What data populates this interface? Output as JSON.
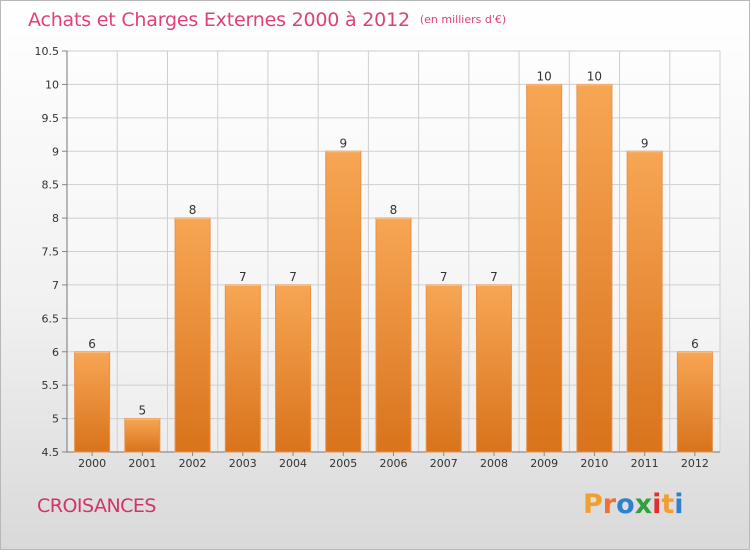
{
  "header": {
    "title": "Achats et Charges Externes 2000 à 2012",
    "subtitle": "(en milliers d'€)"
  },
  "footer": {
    "commune": "CROISANCES",
    "brand_letters": [
      "P",
      "r",
      "o",
      "x",
      "i",
      "t",
      "i"
    ]
  },
  "colors": {
    "title": "#e0407a",
    "bar_top": "#f7a654",
    "bar_bottom": "#d9731c",
    "grid": "#cfcfcf",
    "brand": [
      "#f0a030",
      "#f07030",
      "#3080d0",
      "#30a040",
      "#e03030",
      "#f0a030",
      "#3080d0"
    ]
  },
  "chart_data": {
    "type": "bar",
    "title": "Achats et Charges Externes 2000 à 2012",
    "subtitle": "(en milliers d'€)",
    "categories": [
      "2000",
      "2001",
      "2002",
      "2003",
      "2004",
      "2005",
      "2006",
      "2007",
      "2008",
      "2009",
      "2010",
      "2011",
      "2012"
    ],
    "values": [
      6,
      5,
      8,
      7,
      7,
      9,
      8,
      7,
      7,
      10,
      10,
      9,
      6
    ],
    "data_labels": [
      "6",
      "5",
      "8",
      "7",
      "7",
      "9",
      "8",
      "7",
      "7",
      "10",
      "10",
      "9",
      "6"
    ],
    "ylim": [
      4.5,
      10.5
    ],
    "yticks": [
      4.5,
      5,
      5.5,
      6,
      6.5,
      7,
      7.5,
      8,
      8.5,
      9,
      9.5,
      10,
      10.5
    ],
    "ytick_labels": [
      "4.5",
      "5",
      "5.5",
      "6",
      "6.5",
      "7",
      "7.5",
      "8",
      "8.5",
      "9",
      "9.5",
      "10",
      "10.5"
    ],
    "grid": true,
    "legend": "none"
  }
}
